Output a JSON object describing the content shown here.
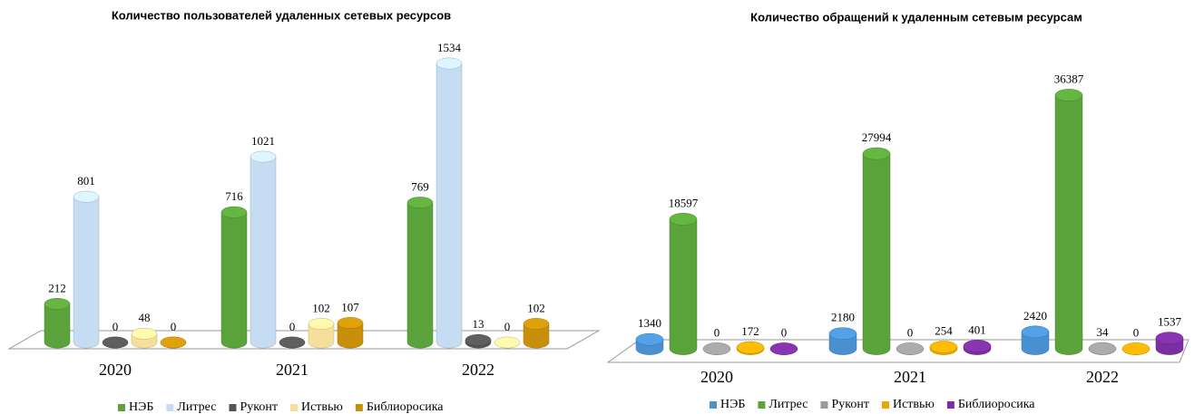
{
  "chart_data": [
    {
      "type": "bar",
      "title": "Количество пользователей удаленных сетевых ресурсов",
      "categories": [
        "2020",
        "2021",
        "2022"
      ],
      "series": [
        {
          "name": "НЭБ",
          "color": "#5aa33a",
          "values": [
            212,
            716,
            769
          ]
        },
        {
          "name": "Литрес",
          "color": "#c6dcf2",
          "values": [
            801,
            1021,
            1534
          ]
        },
        {
          "name": "Руконт",
          "color": "#555555",
          "values": [
            0,
            0,
            13
          ]
        },
        {
          "name": "Иствью",
          "color": "#f5df9a",
          "values": [
            48,
            102,
            0
          ]
        },
        {
          "name": "Библиоросика",
          "color": "#c8900a",
          "values": [
            0,
            107,
            102
          ]
        }
      ]
    },
    {
      "type": "bar",
      "title": "Количество обращений к удаленным сетевым ресурсам",
      "categories": [
        "2020",
        "2021",
        "2022"
      ],
      "series": [
        {
          "name": "НЭБ",
          "color": "#4a90d0",
          "values": [
            1340,
            2180,
            2420
          ]
        },
        {
          "name": "Литрес",
          "color": "#5aa33a",
          "values": [
            18597,
            27994,
            36387
          ]
        },
        {
          "name": "Руконт",
          "color": "#9a9a9a",
          "values": [
            0,
            0,
            34
          ]
        },
        {
          "name": "Иствью",
          "color": "#e8a800",
          "values": [
            172,
            254,
            0
          ]
        },
        {
          "name": "Библиоросика",
          "color": "#7a2fa0",
          "values": [
            0,
            401,
            1537
          ]
        }
      ]
    }
  ]
}
